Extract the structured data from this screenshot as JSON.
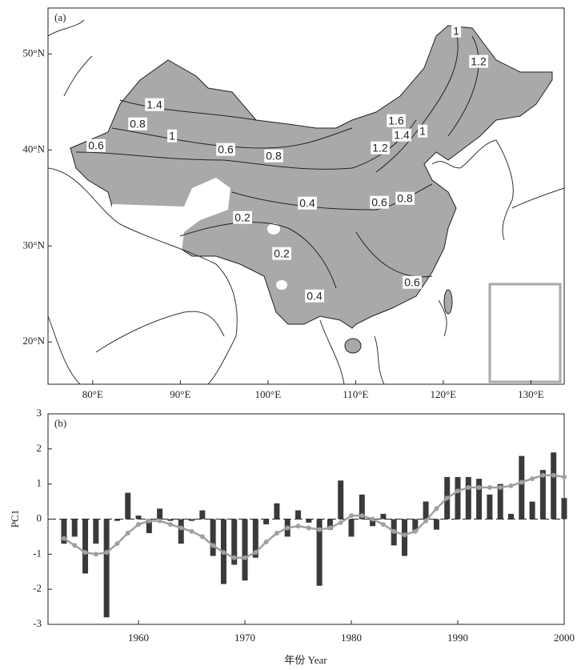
{
  "chart_data": [
    {
      "type": "map",
      "label": "(a)",
      "xlim": [
        74.9,
        133.8
      ],
      "ylim": [
        15.6,
        54.8
      ],
      "xticks": [
        {
          "value": 80,
          "label": "80°E"
        },
        {
          "value": 90,
          "label": "90°E"
        },
        {
          "value": 100,
          "label": "100°E"
        },
        {
          "value": 110,
          "label": "110°E"
        },
        {
          "value": 120,
          "label": "120°E"
        },
        {
          "value": 130,
          "label": "130°E"
        }
      ],
      "yticks": [
        {
          "value": 20,
          "label": "20°N"
        },
        {
          "value": 30,
          "label": "30°N"
        },
        {
          "value": 40,
          "label": "40°N"
        },
        {
          "value": 50,
          "label": "50°N"
        }
      ],
      "contour_labels": [
        1,
        1.2,
        1.4,
        0.8,
        1,
        0.6,
        0.6,
        0.8,
        1.6,
        1.4,
        1,
        1.2,
        0.4,
        0.6,
        0.8,
        0.2,
        0.2,
        0.6,
        0.4
      ]
    },
    {
      "type": "bar",
      "label": "(b)",
      "y_label": "PC1",
      "x_label": "年份 Year",
      "x": [
        1953,
        1954,
        1955,
        1956,
        1957,
        1958,
        1959,
        1960,
        1961,
        1962,
        1963,
        1964,
        1965,
        1966,
        1967,
        1968,
        1969,
        1970,
        1971,
        1972,
        1973,
        1974,
        1975,
        1976,
        1977,
        1978,
        1979,
        1980,
        1981,
        1982,
        1983,
        1984,
        1985,
        1986,
        1987,
        1988,
        1989,
        1990,
        1991,
        1992,
        1993,
        1994,
        1995,
        1996,
        1997,
        1998,
        1999,
        2000
      ],
      "series": [
        {
          "type": "bar",
          "color": "#3a3a3a",
          "values": [
            -0.7,
            -0.5,
            -1.55,
            -0.7,
            -2.8,
            -0.05,
            0.75,
            0.1,
            -0.4,
            0.3,
            -0.05,
            -0.7,
            -0.05,
            0.25,
            -1.05,
            -1.85,
            -1.3,
            -1.75,
            -1.1,
            -0.15,
            0.45,
            -0.5,
            0.25,
            -0.1,
            -1.9,
            -0.3,
            1.1,
            -0.5,
            0.7,
            -0.2,
            0.15,
            -0.75,
            -1.05,
            -0.35,
            0.5,
            -0.3,
            1.2,
            1.2,
            1.2,
            1.15,
            0.7,
            1.0,
            0.15,
            1.8,
            0.5,
            1.4,
            1.9,
            0.6
          ]
        },
        {
          "type": "line",
          "color": "#a0a0a0",
          "values": [
            -0.55,
            -0.75,
            -0.95,
            -1.0,
            -0.95,
            -0.7,
            -0.4,
            -0.15,
            -0.05,
            -0.05,
            -0.15,
            -0.25,
            -0.35,
            -0.5,
            -0.75,
            -0.95,
            -1.1,
            -1.1,
            -0.95,
            -0.65,
            -0.4,
            -0.25,
            -0.2,
            -0.25,
            -0.3,
            -0.25,
            -0.1,
            0.1,
            0.1,
            0.0,
            -0.15,
            -0.35,
            -0.45,
            -0.35,
            -0.05,
            0.3,
            0.6,
            0.8,
            0.9,
            0.9,
            0.9,
            0.9,
            0.95,
            1.05,
            1.15,
            1.25,
            1.25,
            1.2
          ]
        }
      ],
      "xlim": [
        1951.5,
        2000
      ],
      "ylim": [
        -3,
        3
      ],
      "xticks": [
        1960,
        1970,
        1980,
        1990,
        2000
      ],
      "yticks": [
        -3,
        -2,
        -1,
        0,
        1,
        2,
        3
      ]
    }
  ]
}
